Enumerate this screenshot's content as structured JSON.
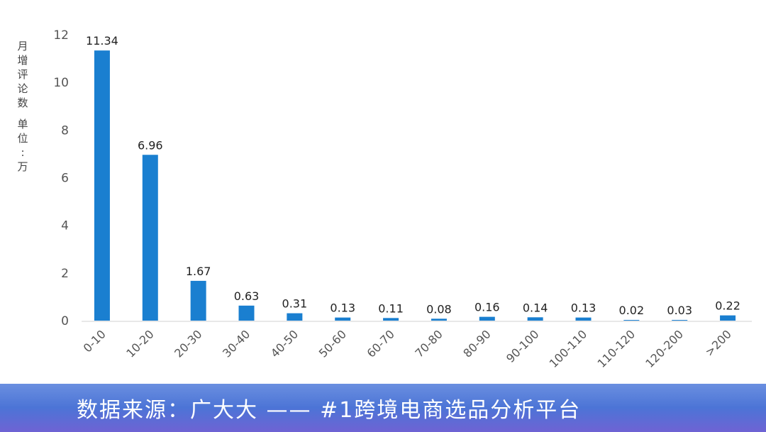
{
  "chart_data": {
    "type": "bar",
    "ylabel": "月增评论数 单位：万",
    "ylim": [
      0,
      12
    ],
    "yticks": [
      0,
      2,
      4,
      6,
      8,
      10,
      12
    ],
    "categories": [
      "0-10",
      "10-20",
      "20-30",
      "30-40",
      "40-50",
      "50-60",
      "60-70",
      "70-80",
      "80-90",
      "90-100",
      "100-110",
      "110-120",
      "120-200",
      ">200"
    ],
    "values": [
      11.34,
      6.96,
      1.67,
      0.63,
      0.31,
      0.13,
      0.11,
      0.08,
      0.16,
      0.14,
      0.13,
      0.02,
      0.03,
      0.22
    ],
    "value_labels": [
      "11.34",
      "6.96",
      "1.67",
      "0.63",
      "0.31",
      "0.13",
      "0.11",
      "0.08",
      "0.16",
      "0.14",
      "0.13",
      "0.02",
      "0.03",
      "0.22"
    ],
    "bar_color": "#1a7fd0",
    "grid": false
  },
  "footer": {
    "source_text": "数据来源：广大大 —— #1跨境电商选品分析平台"
  }
}
